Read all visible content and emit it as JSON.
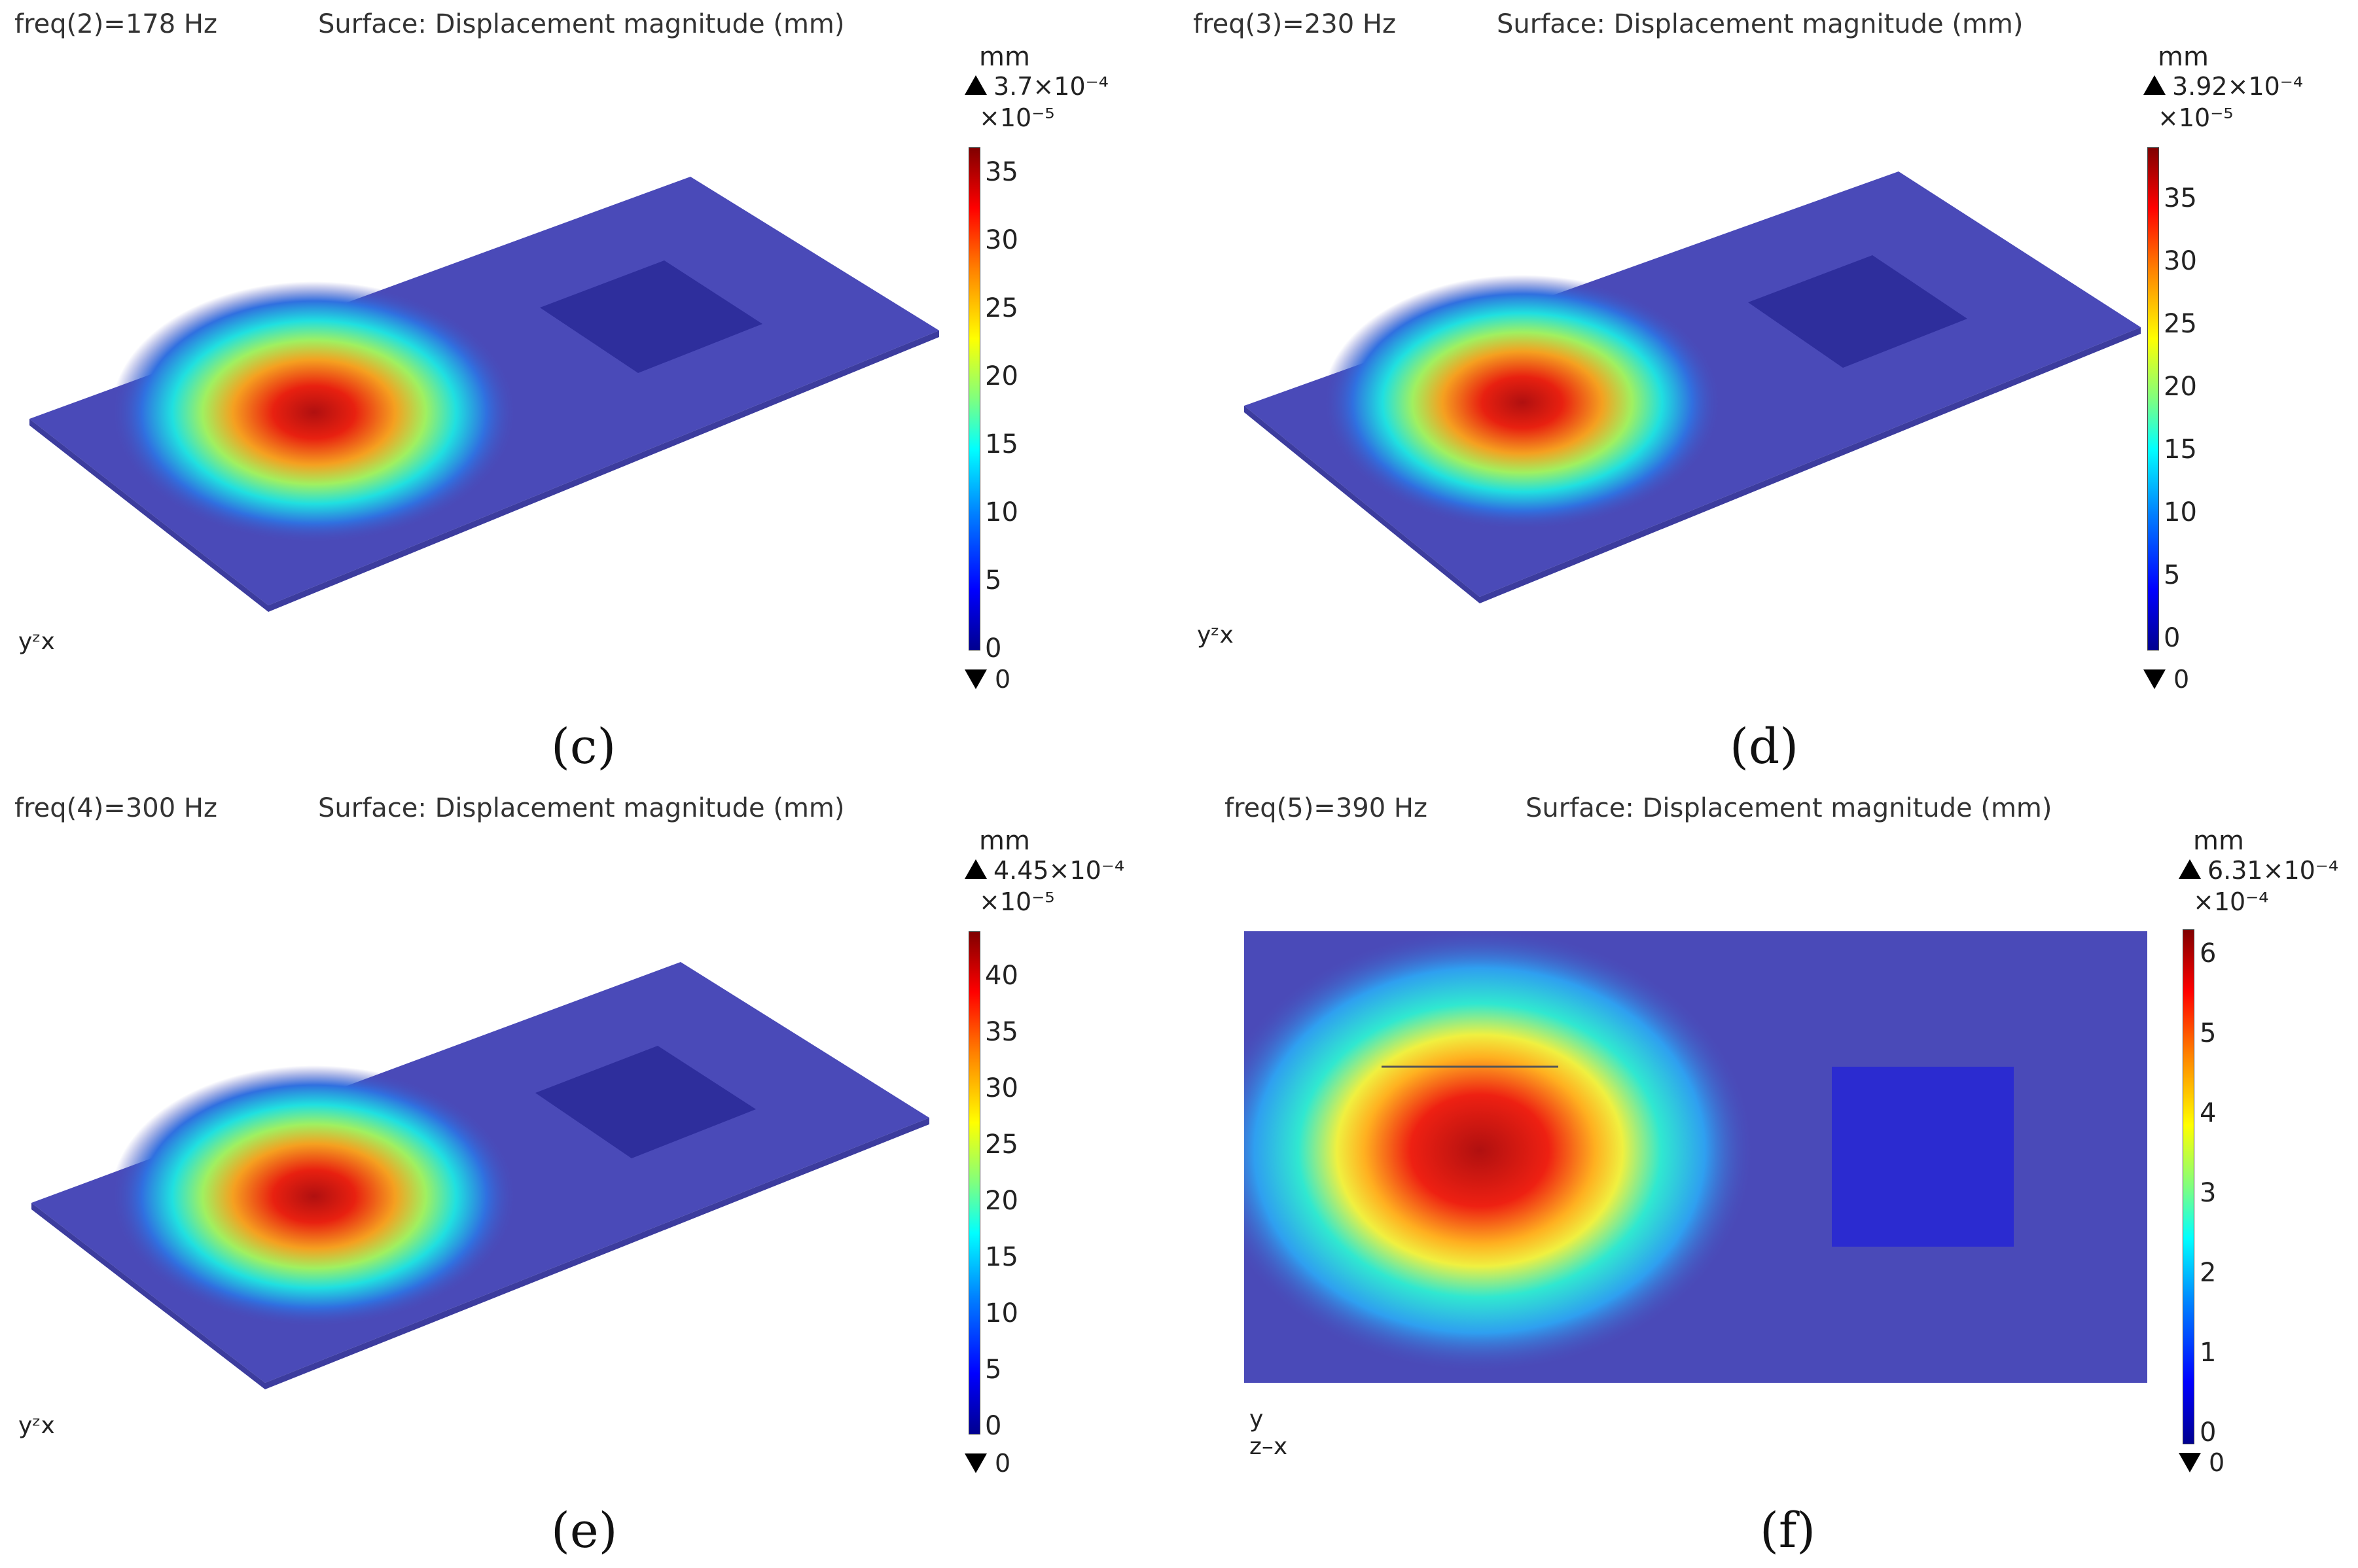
{
  "panels": [
    {
      "freq": "freq(2)=178 Hz",
      "title": "Surface: Displacement magnitude (mm)",
      "unit": "mm",
      "max": "3.7×10⁻⁴",
      "exponent": "×10⁻⁵",
      "min": "0",
      "ticks": [
        "35",
        "30",
        "25",
        "20",
        "15",
        "10",
        "5",
        "0"
      ],
      "axis_label": "yᶻx",
      "label": "(c)"
    },
    {
      "freq": "freq(3)=230 Hz",
      "title": "Surface: Displacement magnitude (mm)",
      "unit": "mm",
      "max": "3.92×10⁻⁴",
      "exponent": "×10⁻⁵",
      "min": "0",
      "ticks": [
        "35",
        "30",
        "25",
        "20",
        "15",
        "10",
        "5",
        "0"
      ],
      "axis_label": "yᶻx",
      "label": "(d)"
    },
    {
      "freq": "freq(4)=300 Hz",
      "title": "Surface: Displacement magnitude (mm)",
      "unit": "mm",
      "max": "4.45×10⁻⁴",
      "exponent": "×10⁻⁵",
      "min": "0",
      "ticks": [
        "40",
        "35",
        "30",
        "25",
        "20",
        "15",
        "10",
        "5",
        "0"
      ],
      "axis_label": "yᶻx",
      "label": "(e)"
    },
    {
      "freq": "freq(5)=390 Hz",
      "title": "Surface: Displacement magnitude (mm)",
      "unit": "mm",
      "max": "6.31×10⁻⁴",
      "exponent": "×10⁻⁴",
      "min": "0",
      "ticks": [
        "6",
        "5",
        "4",
        "3",
        "2",
        "1",
        "0"
      ],
      "axis_label_y": "y",
      "axis_label_zx": "z–x",
      "label": "(f)"
    }
  ],
  "colors": {
    "plate": "#4a4ab8",
    "plate_dark": "#3a3aa0",
    "hot": "#e01010",
    "colormap": "jet"
  }
}
